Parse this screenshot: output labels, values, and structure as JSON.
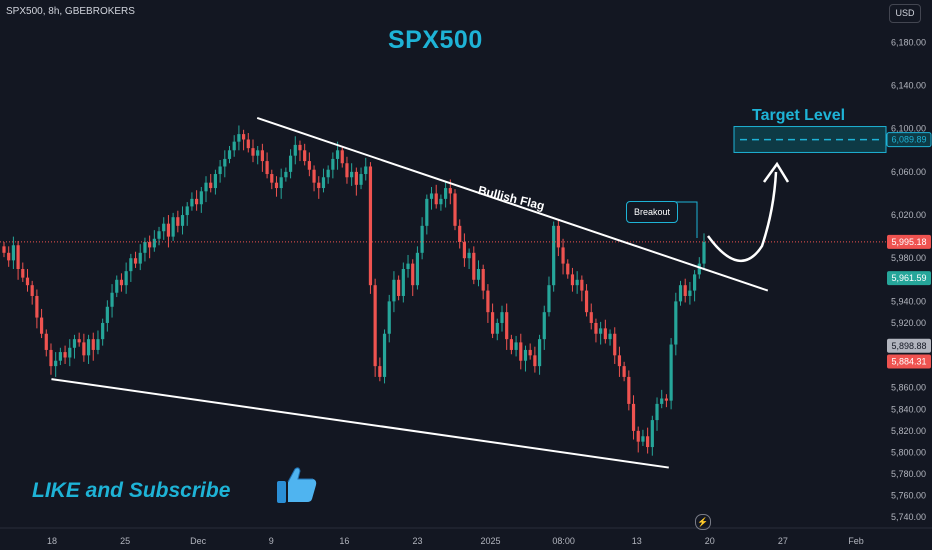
{
  "header": {
    "symbol_info": "SPX500, 8h, GBEBROKERS",
    "currency_button": "USD"
  },
  "annotations": {
    "title": "SPX500",
    "target_level": "Target Level",
    "bullish_flag": "Bullish Flag",
    "breakout": "Breakout",
    "cta": "LIKE and Subscribe",
    "thumbs_up_icon": "thumbs-up-icon",
    "bolt_icon": "lightning-icon"
  },
  "colors": {
    "background": "#131722",
    "up": "#26a69a",
    "down": "#ef5350",
    "accent": "#1eb3d6",
    "lines": "#ffffff"
  },
  "chart_data": {
    "type": "candlestick",
    "ylim": [
      5730,
      6210
    ],
    "y_ticks": [
      "6,180.00",
      "6,140.00",
      "6,100.00",
      "6,060.00",
      "6,020.00",
      "5,980.00",
      "5,940.00",
      "5,920.00",
      "5,860.00",
      "5,840.00",
      "5,820.00",
      "5,800.00",
      "5,780.00",
      "5,760.00",
      "5,740.00"
    ],
    "x_ticks": [
      "18",
      "25",
      "Dec",
      "9",
      "16",
      "23",
      "2025",
      "08:00",
      "13",
      "20",
      "27",
      "Feb"
    ],
    "price_labels": [
      {
        "text": "6,089.89",
        "value": 6089.89,
        "color": "#1eb3d6",
        "bg": "#0e3a45"
      },
      {
        "text": "5,995.18",
        "value": 5995.18,
        "color": "#ffffff",
        "bg": "#ef5350"
      },
      {
        "text": "5,961.59",
        "value": 5961.59,
        "color": "#ffffff",
        "bg": "#26a69a"
      },
      {
        "text": "5,898.88",
        "value": 5898.88,
        "color": "#131722",
        "bg": "#b2b5be"
      },
      {
        "text": "5,884.31",
        "value": 5884.31,
        "color": "#ffffff",
        "bg": "#ef5350"
      }
    ],
    "current_price": 5995.18,
    "target_zone": [
      6078,
      6102
    ],
    "target_dashed": 6089.89,
    "flag_upper": {
      "start": [
        0.2,
        6110
      ],
      "end": [
        0.835,
        5950
      ]
    },
    "flag_lower": {
      "start": [
        0.04,
        5868
      ],
      "end": [
        0.73,
        5786
      ]
    },
    "closes": [
      5985,
      5978,
      5992,
      5970,
      5962,
      5955,
      5945,
      5925,
      5910,
      5895,
      5880,
      5885,
      5893,
      5888,
      5897,
      5905,
      5902,
      5890,
      5905,
      5895,
      5905,
      5920,
      5935,
      5948,
      5960,
      5955,
      5968,
      5980,
      5975,
      5985,
      5995,
      5990,
      5998,
      6005,
      6012,
      6000,
      6018,
      6010,
      6020,
      6028,
      6035,
      6030,
      6042,
      6050,
      6045,
      6058,
      6065,
      6072,
      6080,
      6088,
      6095,
      6090,
      6082,
      6075,
      6080,
      6070,
      6058,
      6050,
      6045,
      6055,
      6060,
      6075,
      6085,
      6080,
      6070,
      6062,
      6050,
      6045,
      6055,
      6062,
      6072,
      6080,
      6068,
      6055,
      6060,
      6048,
      6058,
      6065,
      5955,
      5880,
      5870,
      5910,
      5940,
      5960,
      5945,
      5970,
      5975,
      5955,
      5985,
      6010,
      6035,
      6040,
      6030,
      6035,
      6045,
      6040,
      6010,
      5995,
      5980,
      5985,
      5960,
      5970,
      5950,
      5930,
      5910,
      5920,
      5930,
      5905,
      5895,
      5902,
      5885,
      5895,
      5890,
      5880,
      5905,
      5930,
      5955,
      6010,
      5990,
      5975,
      5965,
      5955,
      5960,
      5950,
      5930,
      5920,
      5910,
      5915,
      5905,
      5910,
      5890,
      5880,
      5870,
      5845,
      5820,
      5810,
      5815,
      5805,
      5830,
      5845,
      5850,
      5848,
      5900,
      5940,
      5955,
      5945,
      5950,
      5965,
      5975,
      5995
    ]
  }
}
